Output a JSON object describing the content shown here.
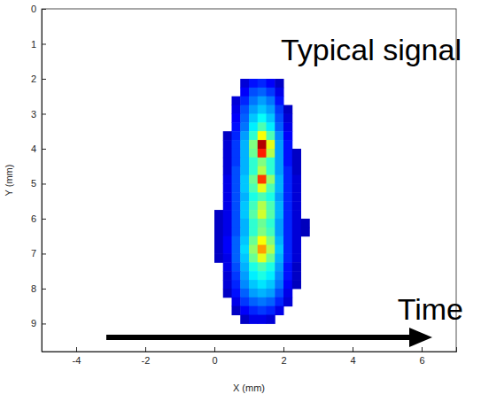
{
  "chart_data": {
    "type": "heatmap",
    "xlabel": "X (mm)",
    "ylabel": "Y (mm)",
    "annotations": [
      {
        "text": "Typical signal"
      },
      {
        "text": "Time"
      }
    ],
    "xlim": [
      -5,
      7
    ],
    "ylim": [
      0,
      9.8
    ],
    "xticks": [
      -4,
      -2,
      0,
      2,
      4,
      6
    ],
    "yticks": [
      0,
      1,
      2,
      3,
      4,
      5,
      6,
      7,
      8,
      9
    ],
    "grid": false,
    "zlim": [
      0,
      1
    ],
    "x": [
      0.125,
      0.375,
      0.625,
      0.875,
      1.125,
      1.375,
      1.625,
      1.875,
      2.125,
      2.375,
      2.625,
      2.875
    ],
    "y": [
      2.125,
      2.375,
      2.625,
      2.875,
      3.125,
      3.375,
      3.625,
      3.875,
      4.125,
      4.375,
      4.625,
      4.875,
      5.125,
      5.375,
      5.625,
      5.875,
      6.125,
      6.375,
      6.625,
      6.875,
      7.125,
      7.375,
      7.625,
      7.875,
      8.125,
      8.375,
      8.625,
      8.875
    ],
    "z": [
      [
        null,
        null,
        null,
        0.08,
        0.14,
        0.16,
        0.12,
        0.06,
        null,
        null,
        null,
        null
      ],
      [
        null,
        null,
        null,
        0.12,
        0.2,
        0.22,
        0.18,
        0.1,
        null,
        null,
        null,
        null
      ],
      [
        null,
        null,
        0.08,
        0.16,
        0.24,
        0.28,
        0.24,
        0.14,
        null,
        null,
        null,
        null
      ],
      [
        null,
        null,
        0.1,
        0.2,
        0.28,
        0.32,
        0.28,
        0.18,
        0.06,
        null,
        null,
        null
      ],
      [
        null,
        null,
        0.12,
        0.22,
        0.32,
        0.38,
        0.32,
        0.2,
        0.08,
        null,
        null,
        null
      ],
      [
        null,
        null,
        0.14,
        0.24,
        0.36,
        0.45,
        0.36,
        0.22,
        0.1,
        null,
        null,
        null
      ],
      [
        null,
        0.06,
        0.16,
        0.28,
        0.42,
        0.62,
        0.45,
        0.26,
        0.12,
        null,
        null,
        null
      ],
      [
        null,
        0.08,
        0.18,
        0.3,
        0.5,
        0.95,
        0.6,
        0.28,
        0.14,
        null,
        null,
        null
      ],
      [
        null,
        0.08,
        0.18,
        0.3,
        0.48,
        0.85,
        0.55,
        0.28,
        0.14,
        0.06,
        null,
        null
      ],
      [
        null,
        0.08,
        0.18,
        0.3,
        0.42,
        0.5,
        0.42,
        0.28,
        0.14,
        0.06,
        null,
        null
      ],
      [
        null,
        0.08,
        0.2,
        0.3,
        0.42,
        0.55,
        0.42,
        0.28,
        0.16,
        0.06,
        null,
        null
      ],
      [
        null,
        0.1,
        0.2,
        0.32,
        0.48,
        0.82,
        0.52,
        0.3,
        0.16,
        0.08,
        null,
        null
      ],
      [
        null,
        0.1,
        0.2,
        0.32,
        0.45,
        0.6,
        0.45,
        0.3,
        0.16,
        0.08,
        null,
        null
      ],
      [
        null,
        0.1,
        0.2,
        0.3,
        0.4,
        0.45,
        0.4,
        0.28,
        0.16,
        0.08,
        null,
        null
      ],
      [
        null,
        0.1,
        0.2,
        0.32,
        0.44,
        0.55,
        0.45,
        0.3,
        0.16,
        0.08,
        null,
        null
      ],
      [
        0.06,
        0.1,
        0.2,
        0.32,
        0.46,
        0.58,
        0.46,
        0.3,
        0.16,
        0.08,
        null,
        null
      ],
      [
        0.06,
        0.1,
        0.2,
        0.3,
        0.42,
        0.48,
        0.42,
        0.28,
        0.16,
        0.08,
        0.05,
        null
      ],
      [
        0.06,
        0.1,
        0.2,
        0.3,
        0.42,
        0.5,
        0.44,
        0.28,
        0.16,
        0.08,
        0.05,
        null
      ],
      [
        0.06,
        0.12,
        0.22,
        0.32,
        0.48,
        0.62,
        0.5,
        0.3,
        0.16,
        0.08,
        null,
        null
      ],
      [
        0.06,
        0.12,
        0.22,
        0.34,
        0.52,
        0.72,
        0.55,
        0.32,
        0.16,
        0.08,
        null,
        null
      ],
      [
        0.06,
        0.1,
        0.22,
        0.32,
        0.48,
        0.6,
        0.48,
        0.3,
        0.16,
        0.08,
        null,
        null
      ],
      [
        null,
        0.1,
        0.2,
        0.3,
        0.4,
        0.45,
        0.4,
        0.28,
        0.14,
        0.06,
        null,
        null
      ],
      [
        null,
        0.08,
        0.18,
        0.28,
        0.36,
        0.4,
        0.36,
        0.26,
        0.14,
        0.06,
        null,
        null
      ],
      [
        null,
        0.08,
        0.16,
        0.26,
        0.32,
        0.35,
        0.32,
        0.24,
        0.12,
        0.05,
        null,
        null
      ],
      [
        null,
        0.06,
        0.14,
        0.22,
        0.28,
        0.3,
        0.28,
        0.2,
        0.1,
        null,
        null,
        null
      ],
      [
        null,
        null,
        0.1,
        0.18,
        0.22,
        0.24,
        0.22,
        0.16,
        0.08,
        null,
        null,
        null
      ],
      [
        null,
        null,
        0.06,
        0.12,
        0.16,
        0.18,
        0.16,
        0.1,
        null,
        null,
        null,
        null
      ],
      [
        null,
        null,
        null,
        0.06,
        0.1,
        0.1,
        0.08,
        null,
        null,
        null,
        null,
        null
      ]
    ]
  }
}
